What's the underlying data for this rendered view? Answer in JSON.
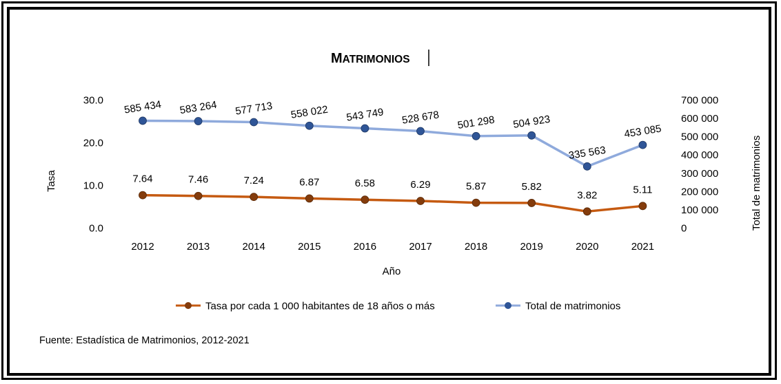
{
  "chart_data": {
    "type": "line",
    "title": "MATRIMONIOS",
    "title_first": "M",
    "title_rest": "ATRIMONIOS",
    "xlabel": "Año",
    "ylabel_left": "Tasa",
    "ylabel_right": "Total de matrimonios",
    "categories": [
      "2012",
      "2013",
      "2014",
      "2015",
      "2016",
      "2017",
      "2018",
      "2019",
      "2020",
      "2021"
    ],
    "y_left_lim": [
      0,
      30
    ],
    "y_left_ticks": [
      "0.0",
      "10.0",
      "20.0",
      "30.0"
    ],
    "y_right_lim": [
      0,
      700000
    ],
    "y_right_ticks": [
      "0",
      "100 000",
      "200 000",
      "300 000",
      "400 000",
      "500 000",
      "600 000",
      "700 000"
    ],
    "series": [
      {
        "name": "Tasa por cada 1 000 habitantes de 18 años o más",
        "axis": "left",
        "color": "#c55a11",
        "marker_color": "#843c0c",
        "values": [
          7.64,
          7.46,
          7.24,
          6.87,
          6.58,
          6.29,
          5.87,
          5.82,
          3.82,
          5.11
        ],
        "labels": [
          "7.64",
          "7.46",
          "7.24",
          "6.87",
          "6.58",
          "6.29",
          "5.87",
          "5.82",
          "3.82",
          "5.11"
        ]
      },
      {
        "name": "Total de matrimonios",
        "axis": "right",
        "color": "#8faadc",
        "marker_color": "#2f5597",
        "values": [
          585434,
          583264,
          577713,
          558022,
          543749,
          528678,
          501298,
          504923,
          335563,
          453085
        ],
        "labels": [
          "585 434",
          "583 264",
          "577 713",
          "558 022",
          "543 749",
          "528 678",
          "501 298",
          "504 923",
          "335 563",
          "453 085"
        ]
      }
    ],
    "grid": false,
    "legend_position": "bottom",
    "source": "Fuente: Estadística de Matrimonios, 2012-2021"
  }
}
